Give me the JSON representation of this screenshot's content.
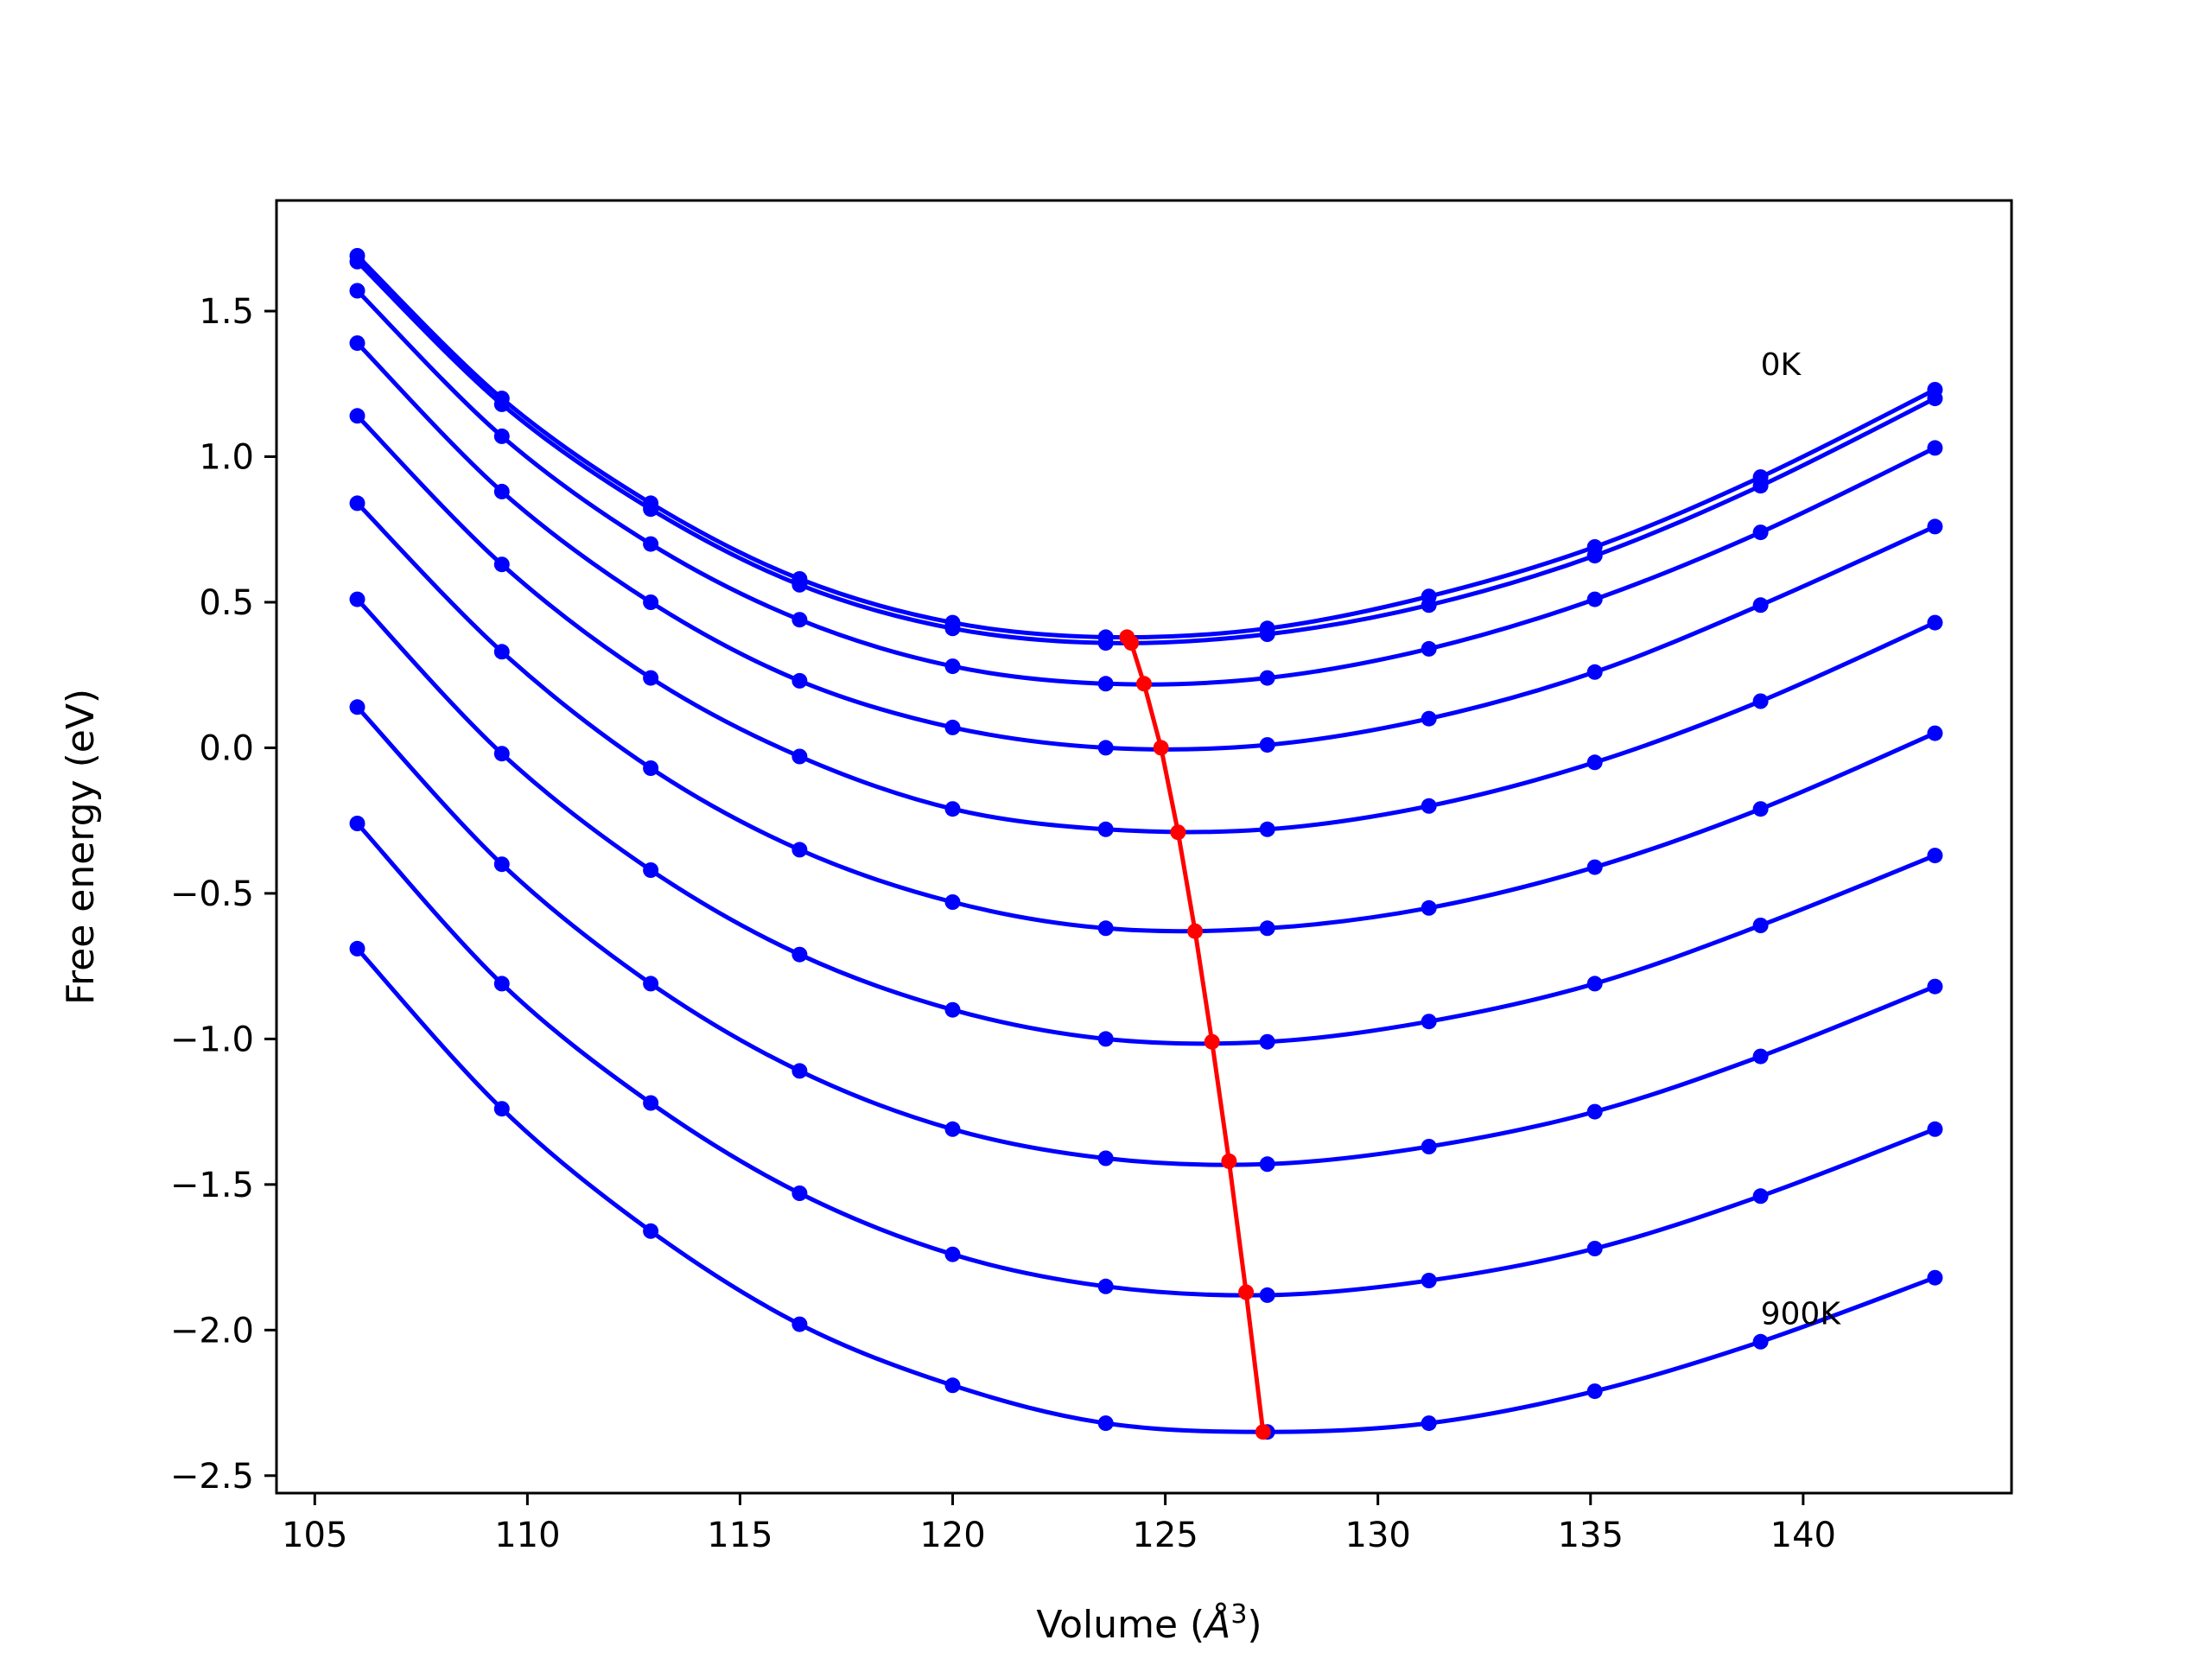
{
  "chart_data": {
    "type": "line",
    "title": "",
    "xlabel": "Volume (Å³)",
    "xlabel_main": "Volume (",
    "xlabel_unit": "Å",
    "xlabel_sup": "3",
    "xlabel_close": ")",
    "ylabel": "Free energy (eV)",
    "xlim": [
      104.1,
      144.9
    ],
    "ylim": [
      -2.56,
      1.88
    ],
    "xticks": [
      105,
      110,
      115,
      120,
      125,
      130,
      135,
      140
    ],
    "xtick_labels": [
      "105",
      "110",
      "115",
      "120",
      "125",
      "130",
      "135",
      "140"
    ],
    "yticks": [
      -2.5,
      -2.0,
      -1.5,
      -1.0,
      -0.5,
      0.0,
      0.5,
      1.0,
      1.5
    ],
    "ytick_labels": [
      "−2.5",
      "−2.0",
      "−1.5",
      "−1.0",
      "−0.5",
      "0.0",
      "0.5",
      "1.0",
      "1.5"
    ],
    "grid": false,
    "x": [
      106.0,
      109.4,
      112.9,
      116.4,
      120.0,
      123.6,
      127.4,
      131.2,
      135.1,
      139.0,
      143.1
    ],
    "series": [
      {
        "values": [
          1.69,
          1.2,
          0.84,
          0.58,
          0.43,
          0.38,
          0.41,
          0.52,
          0.69,
          0.93,
          1.23
        ]
      },
      {
        "values": [
          1.67,
          1.18,
          0.82,
          0.56,
          0.41,
          0.36,
          0.39,
          0.49,
          0.66,
          0.9,
          1.2
        ]
      },
      {
        "values": [
          1.57,
          1.07,
          0.7,
          0.44,
          0.28,
          0.22,
          0.24,
          0.34,
          0.51,
          0.74,
          1.03
        ]
      },
      {
        "values": [
          1.39,
          0.88,
          0.5,
          0.23,
          0.07,
          0.0,
          0.01,
          0.1,
          0.26,
          0.49,
          0.76
        ]
      },
      {
        "values": [
          1.14,
          0.63,
          0.24,
          -0.03,
          -0.21,
          -0.28,
          -0.28,
          -0.2,
          -0.05,
          0.16,
          0.43
        ]
      },
      {
        "values": [
          0.84,
          0.33,
          -0.07,
          -0.35,
          -0.53,
          -0.62,
          -0.62,
          -0.55,
          -0.41,
          -0.21,
          0.05
        ]
      },
      {
        "values": [
          0.51,
          -0.02,
          -0.42,
          -0.71,
          -0.9,
          -1.0,
          -1.01,
          -0.94,
          -0.81,
          -0.61,
          -0.37
        ]
      },
      {
        "values": [
          0.14,
          -0.4,
          -0.81,
          -1.11,
          -1.31,
          -1.41,
          -1.43,
          -1.37,
          -1.25,
          -1.06,
          -0.82
        ]
      },
      {
        "values": [
          -0.26,
          -0.81,
          -1.22,
          -1.53,
          -1.74,
          -1.85,
          -1.88,
          -1.83,
          -1.72,
          -1.54,
          -1.31
        ]
      },
      {
        "values": [
          -0.69,
          -1.24,
          -1.66,
          -1.98,
          -2.19,
          -2.32,
          -2.35,
          -2.32,
          -2.21,
          -2.04,
          -1.82
        ]
      }
    ],
    "minima": {
      "x": [
        124.1,
        124.2,
        124.5,
        124.9,
        125.3,
        125.7,
        126.1,
        126.5,
        126.9,
        127.3
      ],
      "y": [
        0.38,
        0.36,
        0.22,
        0.0,
        -0.29,
        -0.63,
        -1.01,
        -1.42,
        -1.87,
        -2.35
      ]
    },
    "annotations": [
      {
        "text": "0K",
        "x": 139.0,
        "y": 1.28
      },
      {
        "text": "900K",
        "x": 139.0,
        "y": -1.98
      }
    ],
    "colors": {
      "curves": "#0000ff",
      "minima": "#ff0000",
      "axes": "#000000"
    }
  }
}
